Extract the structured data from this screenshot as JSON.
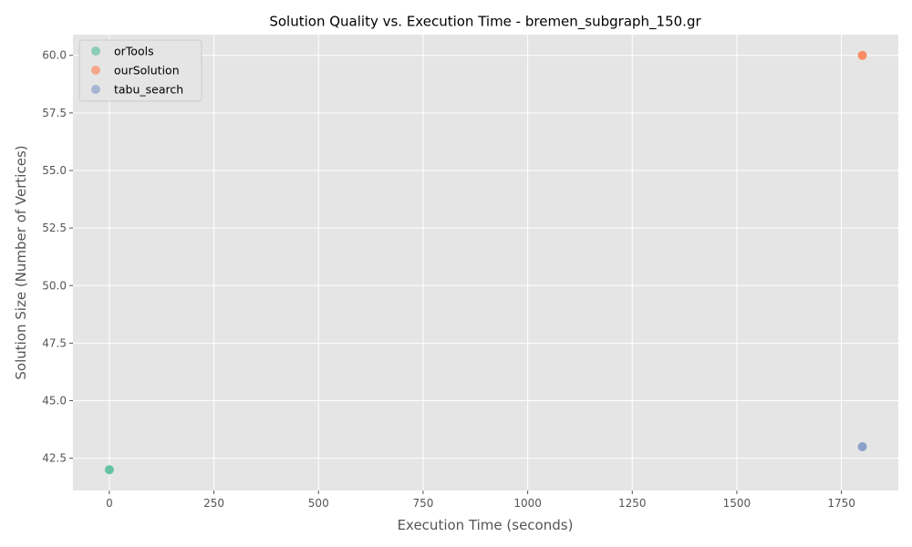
{
  "chart_data": {
    "type": "scatter",
    "title": "Solution Quality vs. Execution Time - bremen_subgraph_150.gr",
    "xlabel": "Execution Time (seconds)",
    "ylabel": "Solution Size (Number of Vertices)",
    "xlim": [
      -87,
      1886
    ],
    "ylim": [
      41.1,
      60.9
    ],
    "x_ticks": [
      0,
      250,
      500,
      750,
      1000,
      1250,
      1500,
      1750
    ],
    "y_ticks": [
      42.5,
      45.0,
      47.5,
      50.0,
      52.5,
      55.0,
      57.5,
      60.0
    ],
    "x_tick_labels": [
      "0",
      "250",
      "500",
      "750",
      "1000",
      "1250",
      "1500",
      "1750"
    ],
    "y_tick_labels": [
      "42.5",
      "45.0",
      "47.5",
      "50.0",
      "52.5",
      "55.0",
      "57.5",
      "60.0"
    ],
    "grid": true,
    "legend_position": "top-left",
    "series": [
      {
        "name": "orTools",
        "color": "#66c2a5",
        "points": [
          {
            "x": 0,
            "y": 42
          }
        ]
      },
      {
        "name": "ourSolution",
        "color": "#fc8d62",
        "points": [
          {
            "x": 1800,
            "y": 60
          }
        ]
      },
      {
        "name": "tabu_search",
        "color": "#8da0cb",
        "points": [
          {
            "x": 1800,
            "y": 43
          }
        ]
      }
    ]
  }
}
